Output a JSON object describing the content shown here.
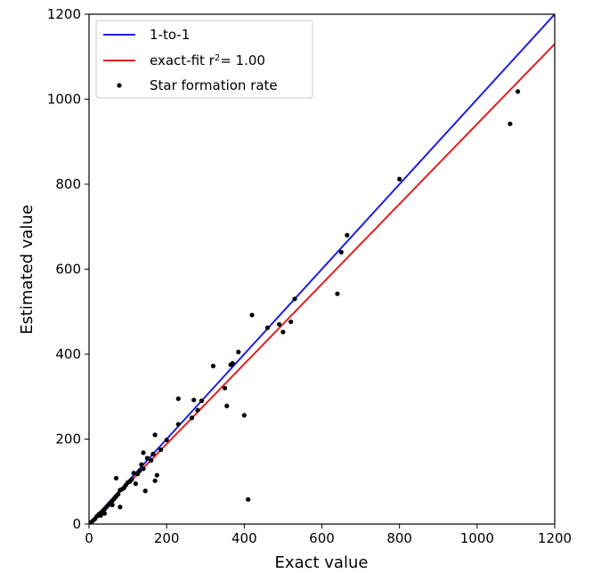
{
  "chart_data": {
    "type": "scatter",
    "xlabel": "Exact value",
    "ylabel": "Estimated value",
    "xlim": [
      0,
      1200
    ],
    "ylim": [
      0,
      1200
    ],
    "xticks": [
      0,
      200,
      400,
      600,
      800,
      1000,
      1200
    ],
    "yticks": [
      0,
      200,
      400,
      600,
      800,
      1000,
      1200
    ],
    "grid": false,
    "legend": {
      "placement": "top-left",
      "entries": [
        {
          "label": "1-to-1",
          "color": "#1f1fe0",
          "kind": "line"
        },
        {
          "label": "exact-fit r",
          "sup": "2",
          "suffix": "= 1.00",
          "color": "#e01f1f",
          "kind": "line"
        },
        {
          "label": "Star formation rate",
          "color": "#000000",
          "kind": "point"
        }
      ]
    },
    "series": [
      {
        "name": "1-to-1",
        "type": "line",
        "color": "#1f1fe0",
        "x": [
          0,
          1200
        ],
        "y": [
          0,
          1200
        ]
      },
      {
        "name": "exact-fit",
        "type": "line",
        "color": "#e01f1f",
        "x": [
          0,
          1200
        ],
        "y": [
          0,
          1130
        ]
      },
      {
        "name": "Star formation rate",
        "type": "scatter",
        "color": "#000000",
        "points": [
          [
            5,
            4
          ],
          [
            10,
            8
          ],
          [
            15,
            12
          ],
          [
            20,
            18
          ],
          [
            25,
            22
          ],
          [
            28,
            25
          ],
          [
            30,
            20
          ],
          [
            35,
            30
          ],
          [
            40,
            35
          ],
          [
            40,
            25
          ],
          [
            45,
            40
          ],
          [
            50,
            45
          ],
          [
            55,
            50
          ],
          [
            60,
            55
          ],
          [
            60,
            45
          ],
          [
            65,
            60
          ],
          [
            70,
            65
          ],
          [
            70,
            108
          ],
          [
            75,
            70
          ],
          [
            80,
            80
          ],
          [
            80,
            40
          ],
          [
            85,
            82
          ],
          [
            90,
            85
          ],
          [
            95,
            92
          ],
          [
            100,
            98
          ],
          [
            105,
            100
          ],
          [
            110,
            105
          ],
          [
            115,
            120
          ],
          [
            120,
            95
          ],
          [
            125,
            118
          ],
          [
            130,
            125
          ],
          [
            135,
            140
          ],
          [
            140,
            168
          ],
          [
            140,
            130
          ],
          [
            145,
            78
          ],
          [
            150,
            155
          ],
          [
            160,
            150
          ],
          [
            165,
            165
          ],
          [
            170,
            210
          ],
          [
            170,
            102
          ],
          [
            175,
            115
          ],
          [
            185,
            175
          ],
          [
            200,
            198
          ],
          [
            230,
            295
          ],
          [
            230,
            235
          ],
          [
            265,
            250
          ],
          [
            270,
            292
          ],
          [
            280,
            268
          ],
          [
            290,
            290
          ],
          [
            320,
            372
          ],
          [
            350,
            320
          ],
          [
            355,
            278
          ],
          [
            365,
            375
          ],
          [
            370,
            378
          ],
          [
            385,
            405
          ],
          [
            400,
            256
          ],
          [
            410,
            58
          ],
          [
            420,
            492
          ],
          [
            460,
            462
          ],
          [
            490,
            470
          ],
          [
            500,
            452
          ],
          [
            520,
            476
          ],
          [
            530,
            530
          ],
          [
            640,
            542
          ],
          [
            650,
            640
          ],
          [
            665,
            680
          ],
          [
            800,
            812
          ],
          [
            1085,
            942
          ],
          [
            1105,
            1018
          ]
        ]
      }
    ]
  }
}
